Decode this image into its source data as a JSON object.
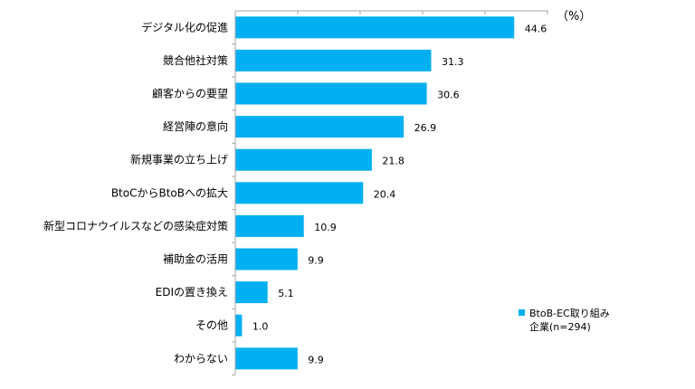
{
  "chart_data": {
    "type": "bar",
    "orientation": "horizontal",
    "unit_label": "（%）",
    "categories": [
      "デジタル化の促進",
      "競合他社対策",
      "顧客からの要望",
      "経営陣の意向",
      "新規事業の立ち上げ",
      "BtoCからBtoBへの拡大",
      "新型コロナウイルスなどの感染症対策",
      "補助金の活用",
      "EDIの置き換え",
      "その他",
      "わからない"
    ],
    "series": [
      {
        "name": "BtoB-EC取り組み企業(n=294)",
        "values": [
          44.6,
          31.3,
          30.6,
          26.9,
          21.8,
          20.4,
          10.9,
          9.9,
          5.1,
          1.0,
          9.9
        ],
        "value_labels": [
          "44.6",
          "31.3",
          "30.6",
          "26.9",
          "21.8",
          "20.4",
          "10.9",
          "9.9",
          "5.1",
          "1.0",
          "9.9"
        ]
      }
    ],
    "legend": {
      "line1": "BtoB-EC取り組み",
      "line2": "企業(n=294)",
      "placement": "right"
    },
    "xlim": [
      0,
      50
    ],
    "x_tick_step": 10,
    "grid": false,
    "colors": {
      "bar": "#00b0f0",
      "axis": "#a6a6a6"
    }
  }
}
